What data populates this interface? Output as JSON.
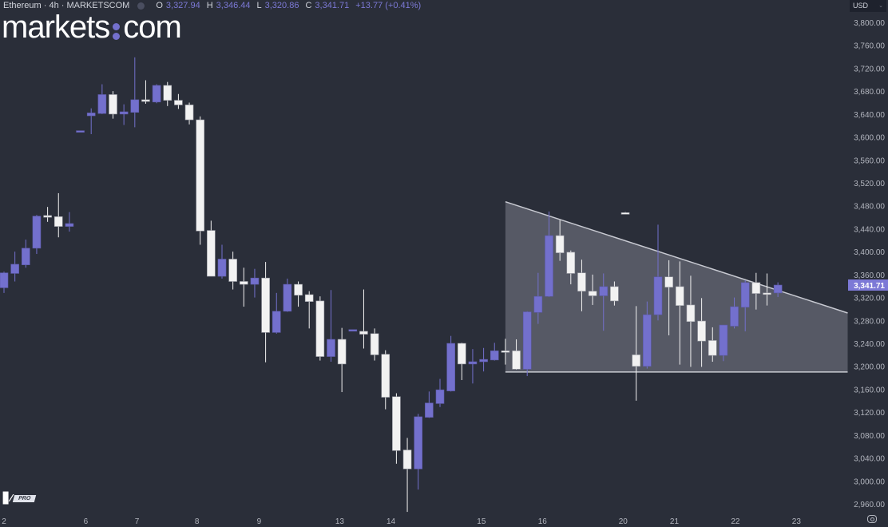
{
  "header": {
    "symbol": "Ethereum · 4h · MARKETSCOM",
    "o_label": "O",
    "o": "3,327.94",
    "h_label": "H",
    "h": "3,346.44",
    "l_label": "L",
    "l": "3,320.86",
    "c_label": "C",
    "c": "3,341.71",
    "change": "+13.77 (+0.41%)"
  },
  "logo": {
    "left": "markets",
    "right": "com"
  },
  "currency": "USD",
  "tv_badge": {
    "mark": "TV",
    "tier": "PRO"
  },
  "colors": {
    "up": "#7370cd",
    "down": "#f2f2f2",
    "background": "#2a2e39",
    "accent": "#7c79d6"
  },
  "chart_data": {
    "type": "candlestick",
    "title": "Ethereum · 4h · MARKETSCOM",
    "ylim": [
      2940,
      3820
    ],
    "y_ticks": [
      3800,
      3760,
      3720,
      3680,
      3640,
      3600,
      3560,
      3520,
      3480,
      3440,
      3400,
      3360,
      3320,
      3280,
      3240,
      3200,
      3160,
      3120,
      3080,
      3040,
      3000,
      2960
    ],
    "y_tick_labels": [
      "3,800.00",
      "3,760.00",
      "3,720.00",
      "3,680.00",
      "3,640.00",
      "3,600.00",
      "3,560.00",
      "3,520.00",
      "3,480.00",
      "3,440.00",
      "3,400.00",
      "3,360.00",
      "3,320.00",
      "3,280.00",
      "3,240.00",
      "3,200.00",
      "3,160.00",
      "3,120.00",
      "3,080.00",
      "3,040.00",
      "3,000.00",
      "2,960.00"
    ],
    "x_ticks": [
      {
        "slot": 0,
        "label": "2"
      },
      {
        "slot": 7.5,
        "label": "6"
      },
      {
        "slot": 12.2,
        "label": "7"
      },
      {
        "slot": 17.7,
        "label": "8"
      },
      {
        "slot": 23.4,
        "label": "9"
      },
      {
        "slot": 30.8,
        "label": "13"
      },
      {
        "slot": 35.5,
        "label": "14"
      },
      {
        "slot": 43.8,
        "label": "15"
      },
      {
        "slot": 49.4,
        "label": "16"
      },
      {
        "slot": 56.8,
        "label": "20"
      },
      {
        "slot": 61.5,
        "label": "21"
      },
      {
        "slot": 67.1,
        "label": "22"
      },
      {
        "slot": 72.7,
        "label": "23"
      }
    ],
    "last_price": {
      "value": 3341.71,
      "label": "3,341.71"
    },
    "candles_ohlc": [
      [
        0,
        3337,
        3365,
        3328,
        3363
      ],
      [
        1,
        3362,
        3400,
        3348,
        3378
      ],
      [
        2,
        3377,
        3421,
        3372,
        3406
      ],
      [
        3,
        3406,
        3464,
        3396,
        3462
      ],
      [
        4,
        3463,
        3478,
        3452,
        3460
      ],
      [
        5,
        3461,
        3502,
        3425,
        3444
      ],
      [
        6,
        3444,
        3469,
        3435,
        3449
      ],
      [
        7,
        3610,
        3611,
        3609,
        3611
      ],
      [
        8,
        3637,
        3650,
        3605,
        3642
      ],
      [
        9,
        3641,
        3692,
        3640,
        3674
      ],
      [
        10,
        3674,
        3680,
        3632,
        3640
      ],
      [
        11,
        3640,
        3657,
        3621,
        3644
      ],
      [
        12,
        3643,
        3739,
        3617,
        3665
      ],
      [
        13,
        3665,
        3699,
        3658,
        3662
      ],
      [
        14,
        3661,
        3692,
        3659,
        3690
      ],
      [
        15,
        3690,
        3696,
        3654,
        3664
      ],
      [
        16,
        3664,
        3675,
        3649,
        3656
      ],
      [
        17,
        3656,
        3660,
        3622,
        3630
      ],
      [
        18,
        3630,
        3636,
        3412,
        3436
      ],
      [
        19,
        3437,
        3454,
        3357,
        3357
      ],
      [
        20,
        3357,
        3412,
        3353,
        3387
      ],
      [
        21,
        3387,
        3400,
        3334,
        3348
      ],
      [
        22,
        3348,
        3372,
        3304,
        3343
      ],
      [
        23,
        3343,
        3370,
        3320,
        3354
      ],
      [
        24,
        3354,
        3382,
        3207,
        3259
      ],
      [
        25,
        3259,
        3328,
        3257,
        3296
      ],
      [
        26,
        3296,
        3353,
        3295,
        3343
      ],
      [
        27,
        3343,
        3348,
        3304,
        3324
      ],
      [
        28,
        3325,
        3331,
        3266,
        3313
      ],
      [
        29,
        3314,
        3322,
        3210,
        3217
      ],
      [
        30,
        3217,
        3333,
        3208,
        3247
      ],
      [
        31,
        3247,
        3267,
        3155,
        3204
      ],
      [
        32,
        3263,
        3264,
        3262,
        3264
      ],
      [
        33,
        3261,
        3334,
        3231,
        3256
      ],
      [
        34,
        3257,
        3266,
        3210,
        3220
      ],
      [
        35,
        3221,
        3228,
        3125,
        3146
      ],
      [
        36,
        3147,
        3153,
        3030,
        3053
      ],
      [
        37,
        3054,
        3075,
        2946,
        3021
      ],
      [
        38,
        3021,
        3117,
        2985,
        3112
      ],
      [
        39,
        3111,
        3156,
        3110,
        3136
      ],
      [
        40,
        3135,
        3178,
        3129,
        3159
      ],
      [
        41,
        3157,
        3253,
        3156,
        3240
      ],
      [
        42,
        3240,
        3241,
        3176,
        3204
      ],
      [
        43,
        3204,
        3230,
        3170,
        3208
      ],
      [
        44,
        3208,
        3232,
        3191,
        3212
      ],
      [
        45,
        3211,
        3241,
        3210,
        3227
      ],
      [
        46,
        3227,
        3248,
        3203,
        3226
      ],
      [
        47,
        3227,
        3247,
        3194,
        3195
      ],
      [
        48,
        3195,
        3296,
        3183,
        3295
      ],
      [
        49,
        3294,
        3363,
        3274,
        3322
      ],
      [
        50,
        3322,
        3470,
        3321,
        3428
      ],
      [
        51,
        3428,
        3455,
        3384,
        3398
      ],
      [
        52,
        3399,
        3402,
        3343,
        3362
      ],
      [
        53,
        3363,
        3386,
        3296,
        3331
      ],
      [
        54,
        3331,
        3360,
        3307,
        3323
      ],
      [
        55,
        3323,
        3362,
        3262,
        3339
      ],
      [
        56,
        3339,
        3348,
        3306,
        3314
      ],
      [
        57,
        3468,
        3469,
        3467,
        3467
      ],
      [
        58,
        3220,
        3305,
        3140,
        3200
      ],
      [
        59,
        3200,
        3313,
        3196,
        3290
      ],
      [
        60,
        3290,
        3447,
        3280,
        3356
      ],
      [
        61,
        3356,
        3385,
        3254,
        3338
      ],
      [
        62,
        3339,
        3383,
        3203,
        3306
      ],
      [
        63,
        3307,
        3358,
        3199,
        3278
      ],
      [
        64,
        3279,
        3319,
        3199,
        3244
      ],
      [
        65,
        3245,
        3268,
        3208,
        3219
      ],
      [
        66,
        3219,
        3272,
        3209,
        3272
      ],
      [
        67,
        3270,
        3320,
        3266,
        3304
      ],
      [
        68,
        3303,
        3350,
        3261,
        3346
      ],
      [
        69,
        3346,
        3363,
        3299,
        3327
      ],
      [
        70,
        3328,
        3362,
        3306,
        3326
      ],
      [
        71,
        3327.94,
        3346.44,
        3320.86,
        3341.71
      ]
    ],
    "triangle": {
      "start_slot": 46,
      "end_slot": 77.4,
      "upper_start": 3487,
      "upper_end": 3293,
      "lower": 3190
    }
  }
}
